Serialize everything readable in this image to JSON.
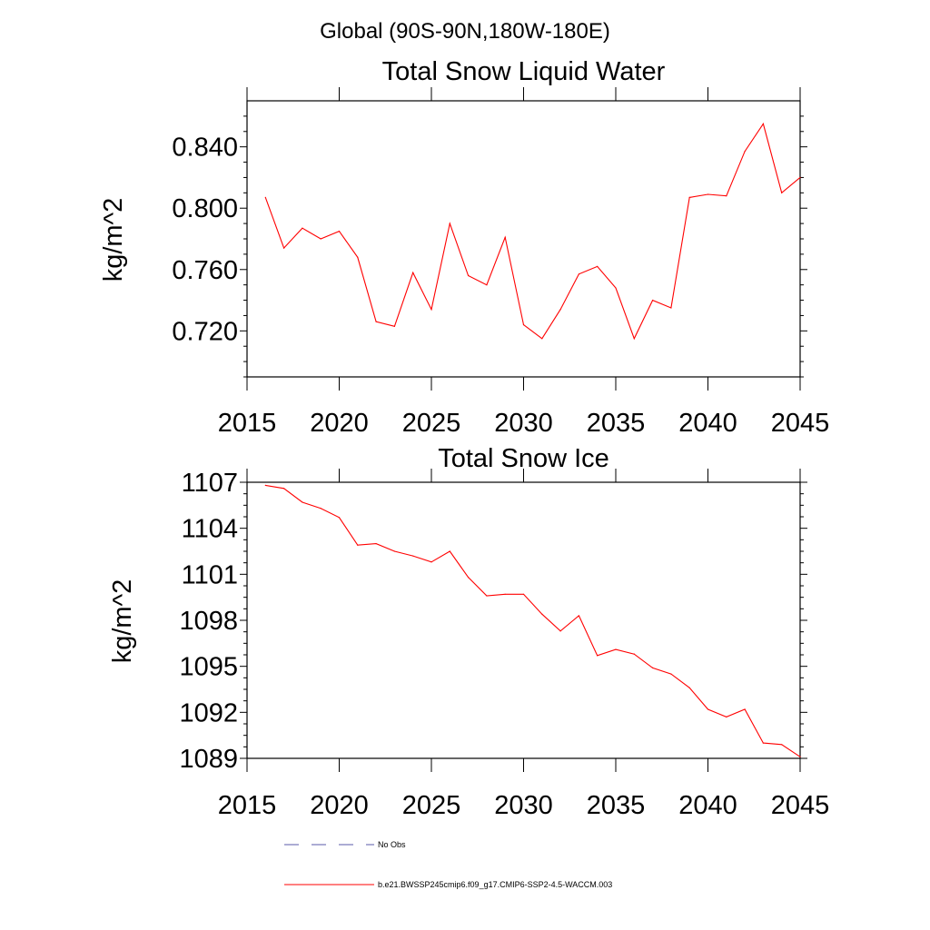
{
  "page_title": "Global (90S-90N,180W-180E)",
  "chart_data": [
    {
      "type": "line",
      "title": "Total Snow Liquid Water",
      "xlabel": "",
      "ylabel": "kg/m^2",
      "xlim": [
        2015,
        2045
      ],
      "ylim": [
        0.69,
        0.87
      ],
      "x_ticks": [
        2015,
        2020,
        2025,
        2030,
        2035,
        2040,
        2045
      ],
      "x_tick_labels": [
        "2015",
        "2020",
        "2025",
        "2030",
        "2035",
        "2040",
        "2045"
      ],
      "y_ticks": [
        0.72,
        0.76,
        0.8,
        0.84
      ],
      "y_tick_labels": [
        "0.720",
        "0.760",
        "0.800",
        "0.840"
      ],
      "series": [
        {
          "name": "b.e21.BWSSP245cmip6.f09_g17.CMIP6-SSP2-4.5-WACCM.003",
          "color": "#ff0000",
          "x": [
            2016,
            2017,
            2018,
            2019,
            2020,
            2021,
            2022,
            2023,
            2024,
            2025,
            2026,
            2027,
            2028,
            2029,
            2030,
            2031,
            2032,
            2033,
            2034,
            2035,
            2036,
            2037,
            2038,
            2039,
            2040,
            2041,
            2042,
            2043,
            2044,
            2045
          ],
          "values": [
            0.807,
            0.774,
            0.787,
            0.78,
            0.785,
            0.768,
            0.726,
            0.723,
            0.758,
            0.734,
            0.79,
            0.756,
            0.75,
            0.781,
            0.724,
            0.715,
            0.734,
            0.757,
            0.762,
            0.748,
            0.715,
            0.74,
            0.735,
            0.807,
            0.809,
            0.808,
            0.837,
            0.855,
            0.81,
            0.82
          ]
        }
      ]
    },
    {
      "type": "line",
      "title": "Total Snow Ice",
      "xlabel": "",
      "ylabel": "kg/m^2",
      "xlim": [
        2015,
        2045
      ],
      "ylim": [
        1089,
        1107
      ],
      "x_ticks": [
        2015,
        2020,
        2025,
        2030,
        2035,
        2040,
        2045
      ],
      "x_tick_labels": [
        "2015",
        "2020",
        "2025",
        "2030",
        "2035",
        "2040",
        "2045"
      ],
      "y_ticks": [
        1089,
        1092,
        1095,
        1098,
        1101,
        1104,
        1107
      ],
      "y_tick_labels": [
        "1089",
        "1092",
        "1095",
        "1098",
        "1101",
        "1104",
        "1107"
      ],
      "series": [
        {
          "name": "b.e21.BWSSP245cmip6.f09_g17.CMIP6-SSP2-4.5-WACCM.003",
          "color": "#ff0000",
          "x": [
            2016,
            2017,
            2018,
            2019,
            2020,
            2021,
            2022,
            2023,
            2024,
            2025,
            2026,
            2027,
            2028,
            2029,
            2030,
            2031,
            2032,
            2033,
            2034,
            2035,
            2036,
            2037,
            2038,
            2039,
            2040,
            2041,
            2042,
            2043,
            2044,
            2045
          ],
          "values": [
            1106.8,
            1106.6,
            1105.7,
            1105.3,
            1104.7,
            1102.9,
            1103.0,
            1102.5,
            1102.2,
            1101.8,
            1102.5,
            1100.8,
            1099.6,
            1099.7,
            1099.7,
            1098.4,
            1097.3,
            1098.3,
            1095.7,
            1096.1,
            1095.8,
            1094.9,
            1094.5,
            1093.6,
            1092.2,
            1091.7,
            1092.2,
            1090.0,
            1089.9,
            1089.1
          ]
        }
      ]
    }
  ],
  "legend": {
    "items": [
      {
        "label": "No Obs",
        "color": "#5a5aa8",
        "style": "dashed"
      },
      {
        "label": "b.e21.BWSSP245cmip6.f09_g17.CMIP6-SSP2-4.5-WACCM.003",
        "color": "#ff0000",
        "style": "solid"
      }
    ]
  }
}
